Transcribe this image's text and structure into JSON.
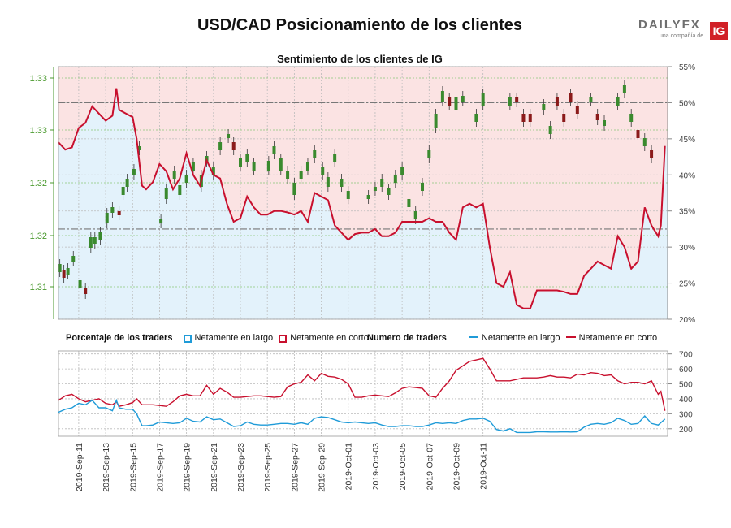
{
  "header": {
    "title": "USD/CAD Posicionamiento de los clientes",
    "logo_text": "DAILYFX",
    "logo_sub": "una compañía de",
    "logo_badge": "IG"
  },
  "legend": {
    "pct_title": "Porcentaje de los traders",
    "pct_long": "Netamente en largo",
    "pct_short": "Netamente en corto",
    "num_title": "Numero de traders",
    "num_long": "Netamente en largo",
    "num_short": "Netamente en corto"
  },
  "colors": {
    "long": "#1f9bd8",
    "short": "#c8102e",
    "long_fill": "#e3f2fb",
    "short_fill": "#fbe3e3",
    "candle_up": "#3a8a2e",
    "candle_down": "#8b1a1a",
    "price_axis": "#4b9a2f"
  },
  "chart_data": [
    {
      "type": "candlestick+line",
      "title": "Sentimiento de los clientes de IG",
      "price_axis_ticks": [
        "1.31",
        "1.32",
        "1.32",
        "1.33",
        "1.33"
      ],
      "pct_axis_ticks": [
        "20%",
        "25%",
        "30%",
        "35%",
        "40%",
        "45%",
        "50%",
        "55%"
      ],
      "pct_range": [
        20,
        55
      ],
      "reference_lines_pct": [
        50,
        32.5
      ],
      "dates": [
        "2019-Sep-11",
        "2019-Sep-13",
        "2019-Sep-15",
        "2019-Sep-17",
        "2019-Sep-19",
        "2019-Sep-21",
        "2019-Sep-23",
        "2019-Sep-25",
        "2019-Sep-27",
        "2019-Sep-29",
        "2019-Oct-01",
        "2019-Oct-03",
        "2019-Oct-05",
        "2019-Oct-07",
        "2019-Oct-09",
        "2019-Oct-11"
      ],
      "net_long_pct": [
        [
          9.5,
          44.5
        ],
        [
          10.0,
          43.5
        ],
        [
          10.5,
          43.8
        ],
        [
          11.0,
          46.5
        ],
        [
          11.5,
          47.2
        ],
        [
          12.0,
          49.5
        ],
        [
          12.5,
          48.5
        ],
        [
          13.0,
          47.5
        ],
        [
          13.5,
          48.2
        ],
        [
          13.8,
          52.0
        ],
        [
          14.0,
          49.0
        ],
        [
          14.5,
          48.5
        ],
        [
          15.0,
          48.0
        ],
        [
          15.3,
          45.0
        ],
        [
          15.7,
          38.5
        ],
        [
          16.0,
          38.0
        ],
        [
          16.5,
          39.0
        ],
        [
          17.0,
          41.5
        ],
        [
          17.5,
          40.5
        ],
        [
          18.0,
          38.0
        ],
        [
          18.5,
          39.5
        ],
        [
          19.0,
          43.0
        ],
        [
          19.5,
          40.0
        ],
        [
          20.0,
          38.5
        ],
        [
          20.5,
          42.0
        ],
        [
          21.0,
          40.0
        ],
        [
          21.5,
          39.5
        ],
        [
          22.0,
          36.0
        ],
        [
          22.5,
          33.5
        ],
        [
          23.0,
          34.0
        ],
        [
          23.5,
          37.0
        ],
        [
          24.0,
          35.5
        ],
        [
          24.5,
          34.5
        ],
        [
          25.0,
          34.5
        ],
        [
          25.5,
          35.0
        ],
        [
          26.0,
          35.0
        ],
        [
          26.5,
          34.8
        ],
        [
          27.0,
          34.5
        ],
        [
          27.5,
          35.0
        ],
        [
          28.0,
          33.5
        ],
        [
          28.5,
          37.5
        ],
        [
          29.0,
          37.0
        ],
        [
          29.5,
          36.5
        ],
        [
          30.0,
          33.0
        ],
        [
          30.5,
          32.0
        ],
        [
          31.0,
          31.0
        ],
        [
          31.5,
          31.8
        ],
        [
          32.0,
          32.0
        ],
        [
          32.5,
          32.0
        ],
        [
          33.0,
          32.5
        ],
        [
          33.5,
          31.5
        ],
        [
          34.0,
          31.5
        ],
        [
          34.5,
          32.0
        ],
        [
          35.0,
          33.5
        ],
        [
          35.5,
          33.5
        ],
        [
          36.0,
          33.5
        ],
        [
          36.5,
          33.5
        ],
        [
          37.0,
          34.0
        ],
        [
          37.5,
          33.5
        ],
        [
          38.0,
          33.5
        ],
        [
          38.5,
          32.0
        ],
        [
          39.0,
          31.0
        ],
        [
          39.5,
          35.5
        ],
        [
          40.0,
          36.0
        ],
        [
          40.5,
          35.5
        ],
        [
          41.0,
          36.0
        ],
        [
          41.5,
          30.0
        ],
        [
          42.0,
          25.0
        ],
        [
          42.5,
          24.5
        ],
        [
          43.0,
          26.5
        ],
        [
          43.5,
          22.0
        ],
        [
          44.0,
          21.5
        ],
        [
          44.5,
          21.5
        ],
        [
          45.0,
          24.0
        ],
        [
          45.5,
          24.0
        ],
        [
          46.0,
          24.0
        ],
        [
          46.5,
          24.0
        ],
        [
          47.0,
          23.8
        ],
        [
          47.5,
          23.5
        ],
        [
          48.0,
          23.5
        ],
        [
          48.5,
          26.0
        ],
        [
          49.0,
          27.0
        ],
        [
          49.5,
          28.0
        ],
        [
          50.0,
          27.5
        ],
        [
          50.5,
          27.0
        ],
        [
          51.0,
          31.5
        ],
        [
          51.5,
          30.0
        ],
        [
          52.0,
          27.0
        ],
        [
          52.5,
          28.0
        ],
        [
          53.0,
          35.5
        ],
        [
          53.5,
          33.0
        ],
        [
          54.0,
          31.5
        ],
        [
          54.2,
          33.0
        ],
        [
          54.5,
          44.0
        ]
      ],
      "num_long": [
        [
          9.5,
          310
        ],
        [
          10.0,
          330
        ],
        [
          10.5,
          340
        ],
        [
          11.0,
          370
        ],
        [
          11.5,
          360
        ],
        [
          12.0,
          390
        ],
        [
          12.5,
          340
        ],
        [
          13.0,
          340
        ],
        [
          13.5,
          320
        ],
        [
          13.8,
          390
        ],
        [
          14.0,
          340
        ],
        [
          14.5,
          330
        ],
        [
          15.0,
          330
        ],
        [
          15.3,
          300
        ],
        [
          15.7,
          220
        ],
        [
          16.0,
          220
        ],
        [
          16.5,
          225
        ],
        [
          17.0,
          245
        ],
        [
          17.5,
          240
        ],
        [
          18.0,
          235
        ],
        [
          18.5,
          240
        ],
        [
          19.0,
          270
        ],
        [
          19.5,
          250
        ],
        [
          20.0,
          245
        ],
        [
          20.5,
          280
        ],
        [
          21.0,
          260
        ],
        [
          21.5,
          265
        ],
        [
          22.0,
          240
        ],
        [
          22.5,
          215
        ],
        [
          23.0,
          220
        ],
        [
          23.5,
          245
        ],
        [
          24.0,
          230
        ],
        [
          24.5,
          225
        ],
        [
          25.0,
          225
        ],
        [
          25.5,
          230
        ],
        [
          26.0,
          235
        ],
        [
          26.5,
          235
        ],
        [
          27.0,
          230
        ],
        [
          27.5,
          240
        ],
        [
          28.0,
          230
        ],
        [
          28.5,
          270
        ],
        [
          29.0,
          280
        ],
        [
          29.5,
          275
        ],
        [
          30.0,
          260
        ],
        [
          30.5,
          245
        ],
        [
          31.0,
          240
        ],
        [
          31.5,
          245
        ],
        [
          32.0,
          240
        ],
        [
          32.5,
          235
        ],
        [
          33.0,
          240
        ],
        [
          33.5,
          225
        ],
        [
          34.0,
          215
        ],
        [
          34.5,
          215
        ],
        [
          35.0,
          220
        ],
        [
          35.5,
          220
        ],
        [
          36.0,
          215
        ],
        [
          36.5,
          215
        ],
        [
          37.0,
          225
        ],
        [
          37.5,
          240
        ],
        [
          38.0,
          235
        ],
        [
          38.5,
          240
        ],
        [
          39.0,
          235
        ],
        [
          39.5,
          255
        ],
        [
          40.0,
          265
        ],
        [
          40.5,
          265
        ],
        [
          41.0,
          270
        ],
        [
          41.5,
          250
        ],
        [
          42.0,
          195
        ],
        [
          42.5,
          185
        ],
        [
          43.0,
          200
        ],
        [
          43.5,
          175
        ],
        [
          44.0,
          175
        ],
        [
          44.5,
          175
        ],
        [
          45.0,
          180
        ],
        [
          45.5,
          180
        ],
        [
          46.0,
          178
        ],
        [
          46.5,
          178
        ],
        [
          47.0,
          180
        ],
        [
          47.5,
          178
        ],
        [
          48.0,
          180
        ],
        [
          48.5,
          210
        ],
        [
          49.0,
          230
        ],
        [
          49.5,
          235
        ],
        [
          50.0,
          230
        ],
        [
          50.5,
          240
        ],
        [
          51.0,
          270
        ],
        [
          51.5,
          255
        ],
        [
          52.0,
          230
        ],
        [
          52.5,
          235
        ],
        [
          53.0,
          285
        ],
        [
          53.5,
          235
        ],
        [
          54.0,
          225
        ],
        [
          54.2,
          240
        ],
        [
          54.5,
          265
        ]
      ],
      "num_short": [
        [
          9.5,
          390
        ],
        [
          10.0,
          420
        ],
        [
          10.5,
          430
        ],
        [
          11.0,
          400
        ],
        [
          11.5,
          380
        ],
        [
          12.0,
          390
        ],
        [
          12.5,
          400
        ],
        [
          13.0,
          370
        ],
        [
          13.5,
          360
        ],
        [
          13.8,
          380
        ],
        [
          14.0,
          350
        ],
        [
          14.5,
          360
        ],
        [
          15.0,
          375
        ],
        [
          15.3,
          400
        ],
        [
          15.7,
          360
        ],
        [
          16.0,
          360
        ],
        [
          16.5,
          360
        ],
        [
          17.0,
          355
        ],
        [
          17.5,
          350
        ],
        [
          18.0,
          380
        ],
        [
          18.5,
          420
        ],
        [
          19.0,
          430
        ],
        [
          19.5,
          420
        ],
        [
          20.0,
          420
        ],
        [
          20.5,
          490
        ],
        [
          21.0,
          430
        ],
        [
          21.5,
          470
        ],
        [
          22.0,
          445
        ],
        [
          22.5,
          410
        ],
        [
          23.0,
          410
        ],
        [
          23.5,
          415
        ],
        [
          24.0,
          420
        ],
        [
          24.5,
          420
        ],
        [
          25.0,
          415
        ],
        [
          25.5,
          410
        ],
        [
          26.0,
          415
        ],
        [
          26.5,
          480
        ],
        [
          27.0,
          500
        ],
        [
          27.5,
          510
        ],
        [
          28.0,
          560
        ],
        [
          28.5,
          520
        ],
        [
          29.0,
          570
        ],
        [
          29.5,
          550
        ],
        [
          30.0,
          545
        ],
        [
          30.5,
          530
        ],
        [
          31.0,
          500
        ],
        [
          31.5,
          410
        ],
        [
          32.0,
          410
        ],
        [
          32.5,
          420
        ],
        [
          33.0,
          425
        ],
        [
          33.5,
          420
        ],
        [
          34.0,
          415
        ],
        [
          34.5,
          440
        ],
        [
          35.0,
          470
        ],
        [
          35.5,
          480
        ],
        [
          36.0,
          475
        ],
        [
          36.5,
          470
        ],
        [
          37.0,
          420
        ],
        [
          37.5,
          410
        ],
        [
          38.0,
          470
        ],
        [
          38.5,
          520
        ],
        [
          39.0,
          590
        ],
        [
          39.5,
          620
        ],
        [
          40.0,
          650
        ],
        [
          40.5,
          660
        ],
        [
          41.0,
          670
        ],
        [
          41.5,
          600
        ],
        [
          42.0,
          520
        ],
        [
          42.5,
          520
        ],
        [
          43.0,
          520
        ],
        [
          43.5,
          530
        ],
        [
          44.0,
          540
        ],
        [
          44.5,
          540
        ],
        [
          45.0,
          540
        ],
        [
          45.5,
          545
        ],
        [
          46.0,
          555
        ],
        [
          46.5,
          545
        ],
        [
          47.0,
          545
        ],
        [
          47.5,
          540
        ],
        [
          48.0,
          565
        ],
        [
          48.5,
          560
        ],
        [
          49.0,
          575
        ],
        [
          49.5,
          570
        ],
        [
          50.0,
          555
        ],
        [
          50.5,
          560
        ],
        [
          51.0,
          520
        ],
        [
          51.5,
          500
        ],
        [
          52.0,
          510
        ],
        [
          52.5,
          510
        ],
        [
          53.0,
          500
        ],
        [
          53.5,
          520
        ],
        [
          54.0,
          430
        ],
        [
          54.2,
          450
        ],
        [
          54.5,
          320
        ]
      ],
      "num_axis_ticks": [
        "200",
        "300",
        "400",
        "500",
        "600",
        "700"
      ],
      "num_range": [
        150,
        720
      ]
    }
  ]
}
